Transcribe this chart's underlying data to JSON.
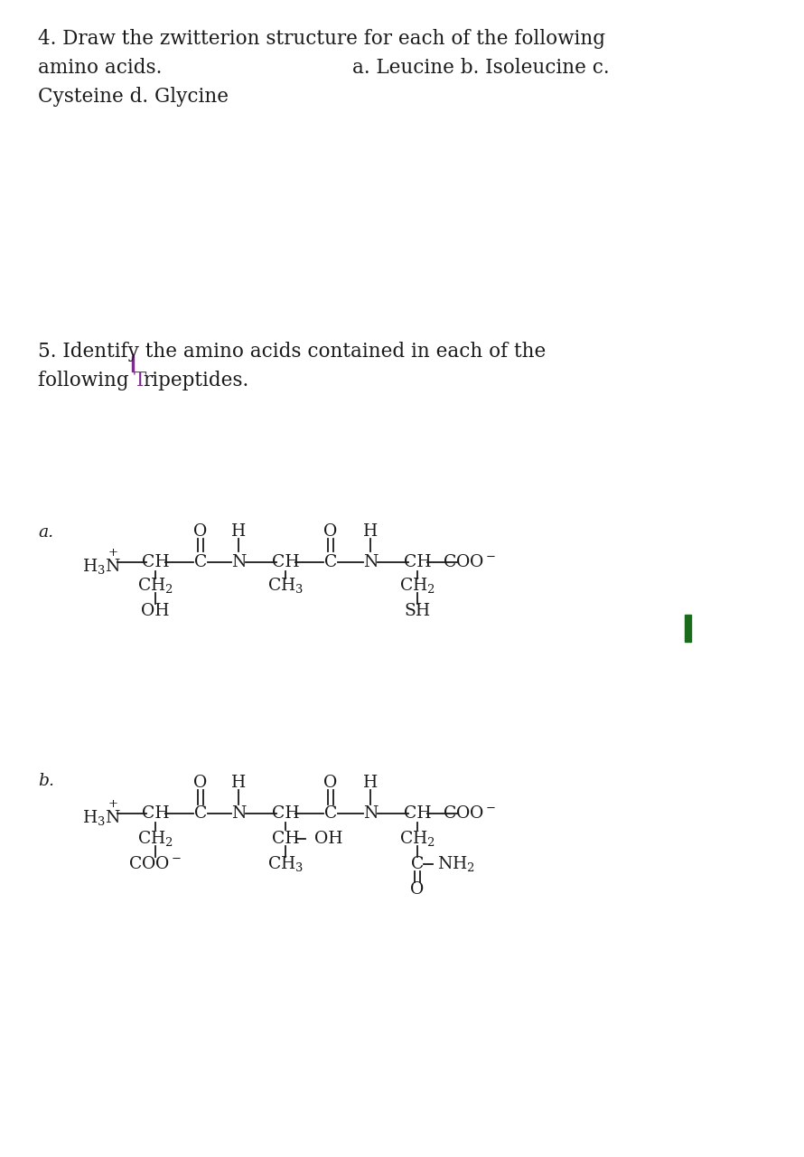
{
  "bg_color": "#ffffff",
  "text_color": "#1a1a1a",
  "purple_color": "#7B2D8B",
  "green_color": "#1a6b1a",
  "font_size_main": 15.5,
  "font_size_chem": 13.5,
  "q4_line1": "4. Draw the zwitterion structure for each of the following",
  "q4_line2_left": "amino acids.",
  "q4_line2_right": "a. Leucine b. Isoleucine c.",
  "q4_line3": "Cysteine d. Glycine",
  "q5_line1": "5. Identify the amino acids contained in each of the",
  "q5_line2_pre": "following ",
  "q5_line2_T": "T",
  "q5_line2_post": "ripeptides.",
  "struct_a_label": "a.",
  "struct_b_label": "b."
}
